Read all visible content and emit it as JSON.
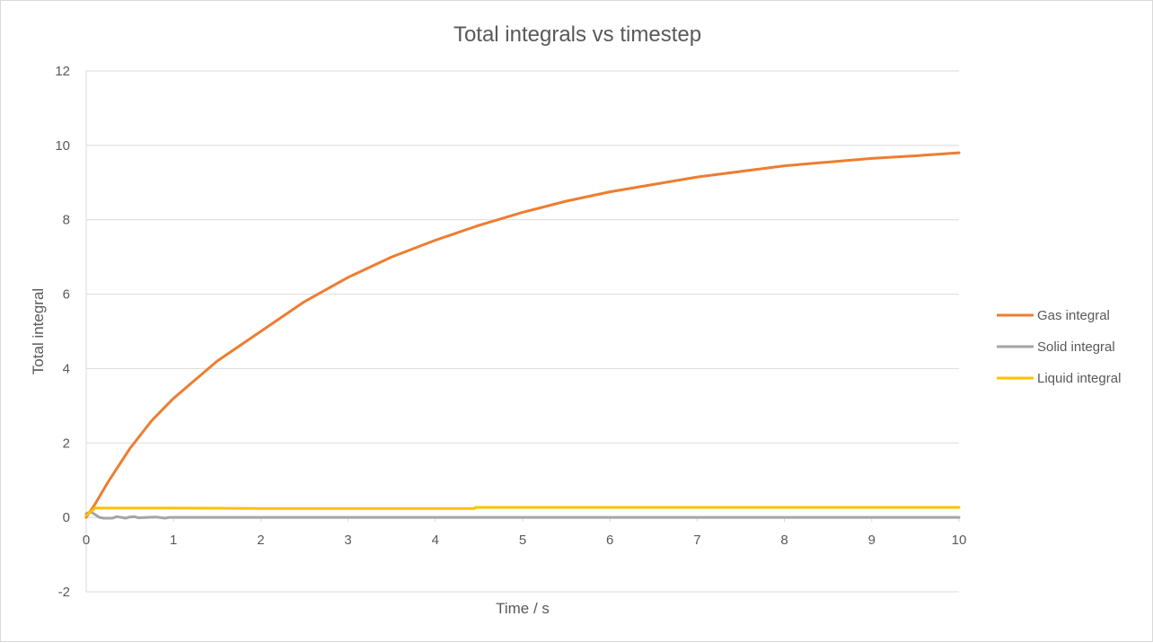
{
  "chart_data": {
    "type": "line",
    "title": "Total integrals vs timestep",
    "xlabel": "Time / s",
    "ylabel": "Total integral",
    "xlim": [
      0,
      10
    ],
    "ylim": [
      -2,
      12
    ],
    "x_ticks": [
      "0",
      "1",
      "2",
      "3",
      "4",
      "5",
      "6",
      "7",
      "8",
      "9",
      "10"
    ],
    "y_ticks": [
      "-2",
      "0",
      "2",
      "4",
      "6",
      "8",
      "10",
      "12"
    ],
    "grid": "horizontal",
    "legend_position": "right",
    "series": [
      {
        "name": "Gas integral",
        "color": "#ED7D31",
        "x": [
          0,
          0.1,
          0.25,
          0.5,
          0.75,
          1,
          1.5,
          2,
          2.5,
          3,
          3.5,
          4,
          4.5,
          5,
          5.5,
          6,
          6.5,
          7,
          7.5,
          8,
          8.5,
          9,
          9.5,
          10
        ],
        "y": [
          0,
          0.35,
          0.95,
          1.85,
          2.6,
          3.2,
          4.2,
          5.0,
          5.8,
          6.45,
          7.0,
          7.45,
          7.85,
          8.2,
          8.5,
          8.75,
          8.95,
          9.15,
          9.3,
          9.45,
          9.55,
          9.65,
          9.72,
          9.8
        ]
      },
      {
        "name": "Solid integral",
        "color": "#A5A5A5",
        "x": [
          0,
          0.05,
          0.1,
          0.15,
          0.2,
          0.3,
          0.35,
          0.4,
          0.45,
          0.5,
          0.55,
          0.6,
          0.7,
          0.8,
          0.9,
          0.95,
          1,
          2,
          3,
          4,
          5,
          6,
          7,
          8,
          9,
          10
        ],
        "y": [
          0.1,
          0.15,
          0.08,
          0.0,
          -0.02,
          -0.02,
          0.02,
          0.0,
          -0.02,
          0.01,
          0.02,
          -0.01,
          0.0,
          0.01,
          -0.02,
          0.0,
          0.0,
          0.0,
          0.0,
          0.0,
          0.0,
          0.0,
          0.0,
          0.0,
          0.0,
          0.0
        ]
      },
      {
        "name": "Liquid integral",
        "color": "#FFC000",
        "x": [
          0,
          0.1,
          1,
          2,
          3,
          4,
          4.45,
          4.46,
          5,
          6,
          7,
          8,
          9,
          10
        ],
        "y": [
          0.05,
          0.25,
          0.25,
          0.24,
          0.24,
          0.24,
          0.24,
          0.27,
          0.27,
          0.27,
          0.27,
          0.27,
          0.27,
          0.27
        ]
      }
    ]
  }
}
